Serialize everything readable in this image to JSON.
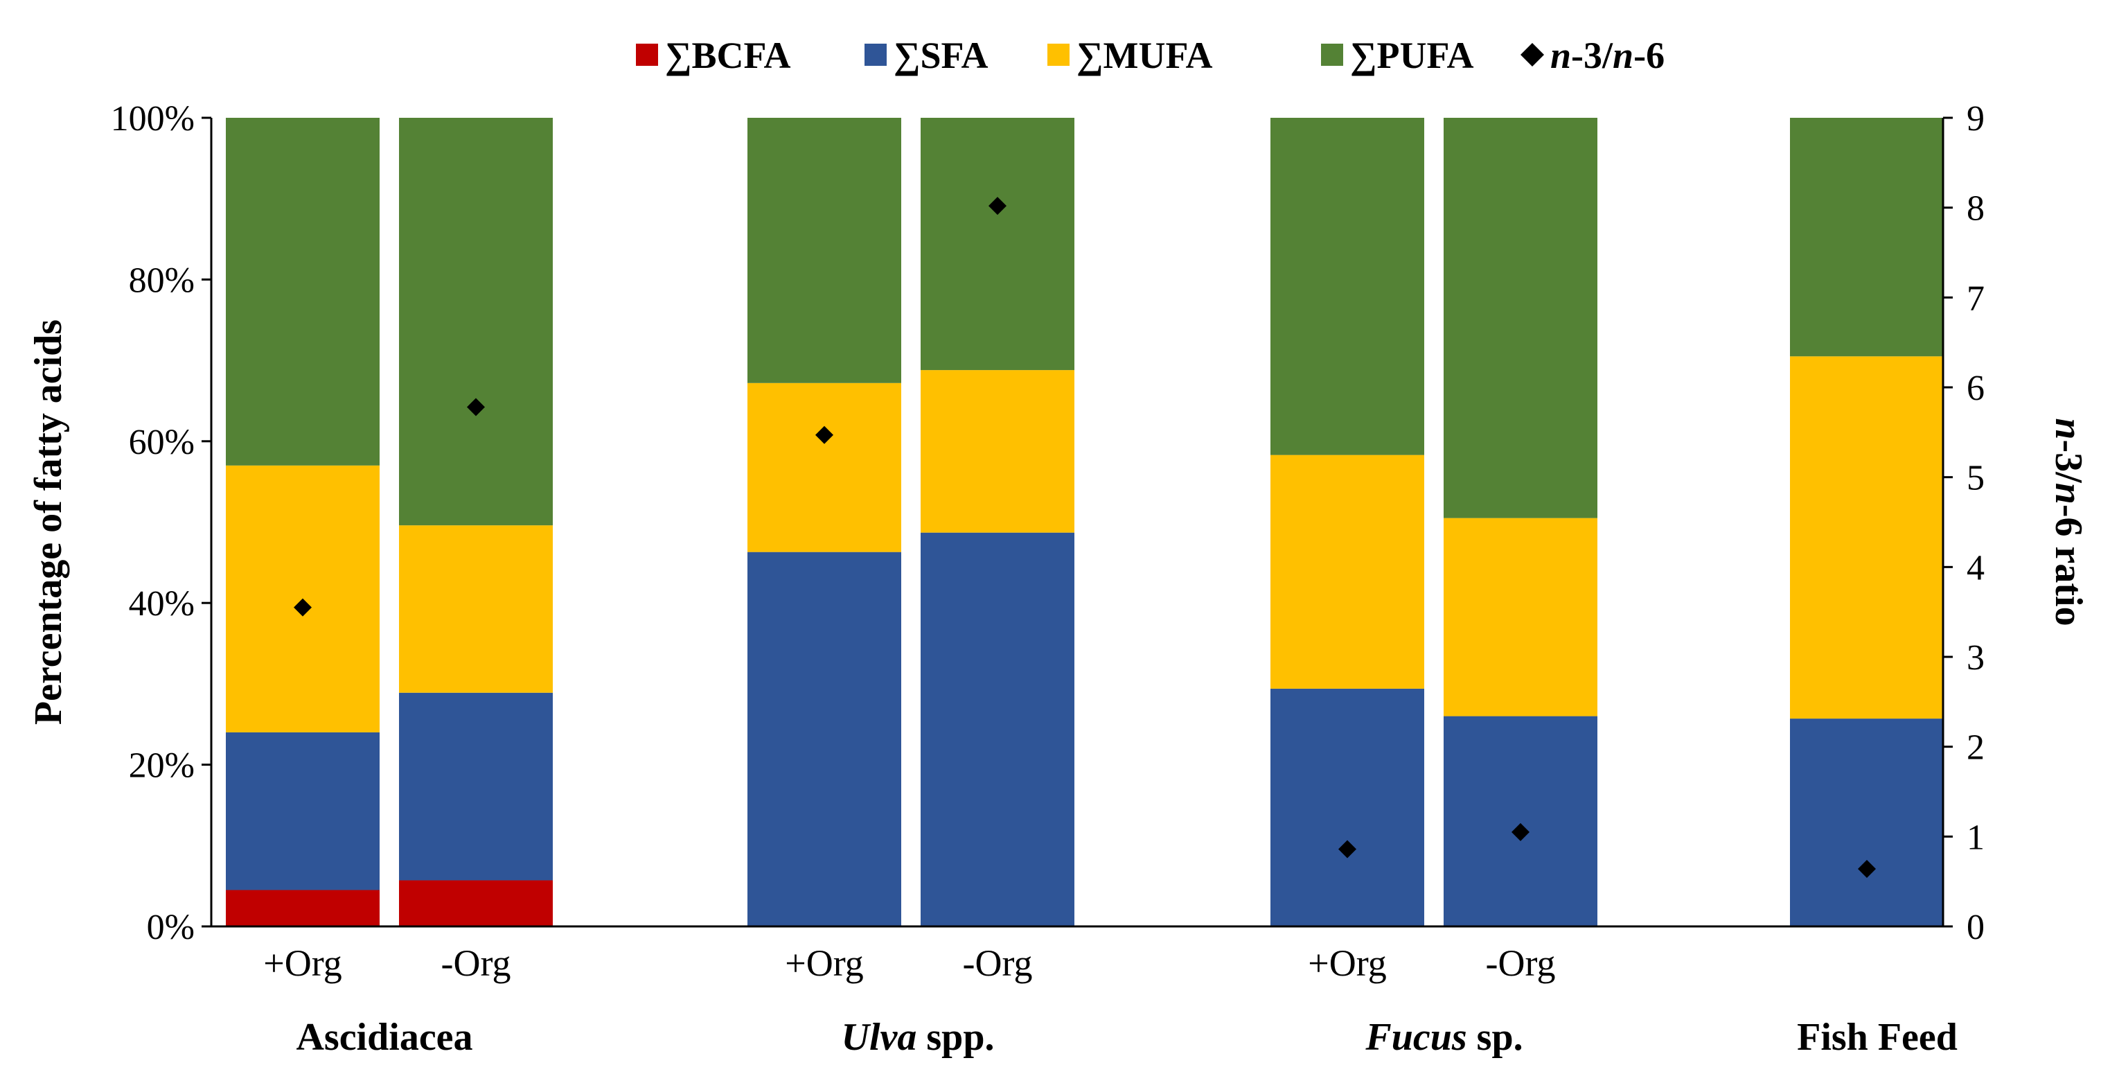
{
  "chart_data": {
    "type": "bar",
    "subtype": "stacked-100-percent-with-secondary-scatter",
    "legend_position": "top-center",
    "legend": [
      {
        "key": "bcfa",
        "label": "∑BCFA",
        "color": "#C00000",
        "marker": "square"
      },
      {
        "key": "sfa",
        "label": "∑SFA",
        "color": "#2F5597",
        "marker": "square"
      },
      {
        "key": "mufa",
        "label": "∑MUFA",
        "color": "#FFC000",
        "marker": "square"
      },
      {
        "key": "pufa",
        "label": "∑PUFA",
        "color": "#548235",
        "marker": "square"
      },
      {
        "key": "ratio",
        "label_parts": [
          "n",
          "-3/",
          "n",
          "-6"
        ],
        "color": "#000000",
        "marker": "diamond"
      }
    ],
    "ylabel": "Percentage of fatty acids",
    "ylim": [
      0,
      100
    ],
    "yticks": [
      "0%",
      "20%",
      "40%",
      "60%",
      "80%",
      "100%"
    ],
    "y2label_parts": [
      "n",
      "-3/",
      "n",
      "-6 ratio"
    ],
    "y2lim": [
      0,
      9
    ],
    "y2ticks": [
      "0",
      "1",
      "2",
      "3",
      "4",
      "5",
      "6",
      "7",
      "8",
      "9"
    ],
    "groups": [
      {
        "name_parts": [
          "Ascidiacea"
        ],
        "italic": [
          false
        ]
      },
      {
        "name_parts": [
          "Ulva",
          " spp."
        ],
        "italic": [
          true,
          false
        ]
      },
      {
        "name_parts": [
          "Fucus",
          " sp."
        ],
        "italic": [
          true,
          false
        ]
      },
      {
        "name_parts": [
          "Fish Feed"
        ],
        "italic": [
          false
        ]
      }
    ],
    "bars": [
      {
        "group": 0,
        "label": "+Org",
        "bcfa": 4.5,
        "sfa": 19.5,
        "mufa": 33.0,
        "pufa": 43.0,
        "ratio": 3.55
      },
      {
        "group": 0,
        "label": "-Org",
        "bcfa": 5.7,
        "sfa": 23.2,
        "mufa": 20.7,
        "pufa": 50.4,
        "ratio": 5.78
      },
      {
        "group": 1,
        "label": "+Org",
        "bcfa": 0,
        "sfa": 46.3,
        "mufa": 20.9,
        "pufa": 32.8,
        "ratio": 5.47
      },
      {
        "group": 1,
        "label": "-Org",
        "bcfa": 0,
        "sfa": 48.7,
        "mufa": 20.1,
        "pufa": 31.2,
        "ratio": 8.02
      },
      {
        "group": 2,
        "label": "+Org",
        "bcfa": 0,
        "sfa": 29.4,
        "mufa": 28.9,
        "pufa": 41.7,
        "ratio": 0.86
      },
      {
        "group": 2,
        "label": "-Org",
        "bcfa": 0,
        "sfa": 26.0,
        "mufa": 24.5,
        "pufa": 49.5,
        "ratio": 1.05
      },
      {
        "group": 3,
        "label": "",
        "bcfa": 0,
        "sfa": 25.7,
        "mufa": 44.8,
        "pufa": 29.5,
        "ratio": 0.64
      }
    ]
  }
}
